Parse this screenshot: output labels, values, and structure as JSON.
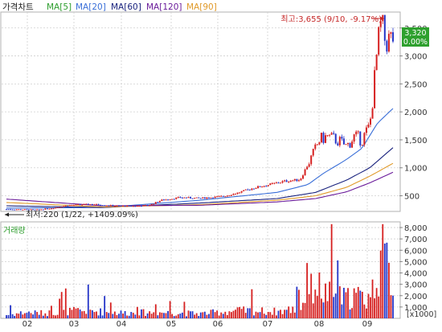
{
  "header": {
    "title": "가격차트",
    "ma_labels": [
      {
        "text": "MA[5]",
        "color": "#2e9e2e"
      },
      {
        "text": "MA[20]",
        "color": "#3a6fd8"
      },
      {
        "text": "MA[60]",
        "color": "#1a237e"
      },
      {
        "text": "MA[120]",
        "color": "#6a1b9a"
      },
      {
        "text": "MA[90]",
        "color": "#e09a2a"
      }
    ]
  },
  "price_panel": {
    "y_ticks": [
      "3,500",
      "3,000",
      "2,500",
      "2,000",
      "1,500",
      "1,000",
      "500"
    ],
    "current_price": "3,320",
    "current_change": "0.00%",
    "high_annotation": "최고:3,655 (9/10, -9.17%)",
    "low_annotation": "최저:220 (1/22, +1409.09%)"
  },
  "volume_panel": {
    "title": "거래량",
    "y_ticks": [
      "8,000",
      "7,000",
      "6,000",
      "5,000",
      "4,000",
      "3,000",
      "2,000",
      "1,000"
    ],
    "unit_label": "[x1000]"
  },
  "x_ticks": [
    "02",
    "03",
    "04",
    "05",
    "06",
    "07",
    "08",
    "09"
  ],
  "colors": {
    "up": "#d62020",
    "down": "#2535c8",
    "grid": "#cfcfcf",
    "badge_bg": "#2ea02e",
    "annotation": "#c62828"
  },
  "chart_data": {
    "type": "candlestick",
    "price_ylim": [
      220,
      3655
    ],
    "volume_ylim": [
      0,
      8500
    ],
    "price_anchors": [
      [
        0.0,
        260
      ],
      [
        0.08,
        250
      ],
      [
        0.12,
        280
      ],
      [
        0.16,
        330
      ],
      [
        0.22,
        350
      ],
      [
        0.28,
        320
      ],
      [
        0.33,
        315
      ],
      [
        0.37,
        330
      ],
      [
        0.4,
        420
      ],
      [
        0.45,
        470
      ],
      [
        0.5,
        455
      ],
      [
        0.56,
        490
      ],
      [
        0.6,
        555
      ],
      [
        0.64,
        640
      ],
      [
        0.68,
        700
      ],
      [
        0.72,
        760
      ],
      [
        0.76,
        790
      ],
      [
        0.79,
        1200
      ],
      [
        0.81,
        1500
      ],
      [
        0.83,
        1560
      ],
      [
        0.86,
        1480
      ],
      [
        0.88,
        1380
      ],
      [
        0.9,
        1560
      ],
      [
        0.92,
        1500
      ],
      [
        0.94,
        1750
      ],
      [
        0.95,
        2400
      ],
      [
        0.96,
        3150
      ],
      [
        0.97,
        3600
      ],
      [
        0.98,
        3250
      ],
      [
        1.0,
        3320
      ]
    ],
    "moving_averages": [
      {
        "name": "MA[20]",
        "color": "#3a6fd8",
        "points": [
          [
            0.0,
            280
          ],
          [
            0.25,
            290
          ],
          [
            0.5,
            420
          ],
          [
            0.7,
            560
          ],
          [
            0.78,
            700
          ],
          [
            0.82,
            900
          ],
          [
            0.88,
            1150
          ],
          [
            0.92,
            1350
          ],
          [
            0.96,
            1800
          ],
          [
            1.0,
            2060
          ]
        ]
      },
      {
        "name": "MA[60]",
        "color": "#1a237e",
        "points": [
          [
            0.0,
            320
          ],
          [
            0.25,
            290
          ],
          [
            0.5,
            370
          ],
          [
            0.7,
            450
          ],
          [
            0.8,
            560
          ],
          [
            0.88,
            780
          ],
          [
            0.94,
            1000
          ],
          [
            1.0,
            1360
          ]
        ]
      },
      {
        "name": "MA[90]",
        "color": "#e09a2a",
        "points": [
          [
            0.0,
            380
          ],
          [
            0.25,
            300
          ],
          [
            0.5,
            340
          ],
          [
            0.7,
            420
          ],
          [
            0.8,
            500
          ],
          [
            0.88,
            650
          ],
          [
            0.94,
            850
          ],
          [
            1.0,
            1080
          ]
        ]
      },
      {
        "name": "MA[120]",
        "color": "#6a1b9a",
        "points": [
          [
            0.0,
            440
          ],
          [
            0.25,
            320
          ],
          [
            0.5,
            330
          ],
          [
            0.7,
            390
          ],
          [
            0.8,
            450
          ],
          [
            0.88,
            570
          ],
          [
            0.94,
            730
          ],
          [
            1.0,
            920
          ]
        ]
      }
    ],
    "volume_anchors": [
      [
        0.0,
        400
      ],
      [
        0.05,
        700
      ],
      [
        0.1,
        600
      ],
      [
        0.15,
        800
      ],
      [
        0.2,
        900
      ],
      [
        0.3,
        650
      ],
      [
        0.4,
        700
      ],
      [
        0.5,
        550
      ],
      [
        0.6,
        900
      ],
      [
        0.7,
        800
      ],
      [
        0.76,
        1200
      ],
      [
        0.8,
        4200
      ],
      [
        0.82,
        3000
      ],
      [
        0.85,
        2600
      ],
      [
        0.88,
        2300
      ],
      [
        0.9,
        2800
      ],
      [
        0.93,
        2200
      ],
      [
        0.95,
        3500
      ],
      [
        0.97,
        7800
      ],
      [
        1.0,
        4200
      ]
    ]
  }
}
